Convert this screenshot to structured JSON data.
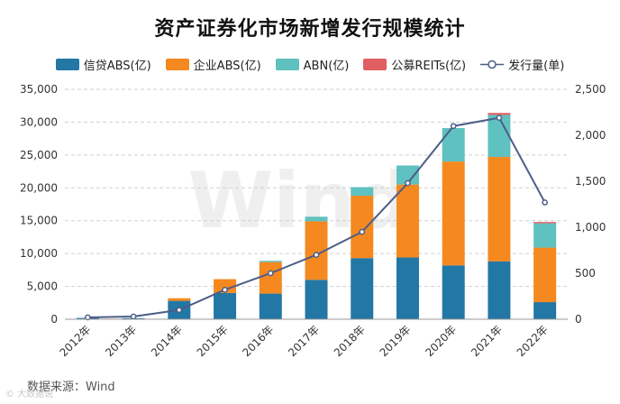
{
  "chart_data": {
    "type": "bar+line",
    "title": "资产证券化市场新增发行规模统计",
    "categories": [
      "2012年",
      "2013年",
      "2014年",
      "2015年",
      "2016年",
      "2017年",
      "2018年",
      "2019年",
      "2020年",
      "2021年",
      "2022年"
    ],
    "series": [
      {
        "name": "信贷ABS(亿)",
        "color": "#2377a4",
        "values": [
          200,
          150,
          2800,
          4000,
          3900,
          6000,
          9300,
          9400,
          8200,
          8800,
          2600
        ]
      },
      {
        "name": "企业ABS(亿)",
        "color": "#f5891f",
        "values": [
          0,
          0,
          400,
          2100,
          4800,
          8900,
          9500,
          11100,
          15800,
          15900,
          8300
        ]
      },
      {
        "name": "ABN(亿)",
        "color": "#5fc1c0",
        "values": [
          0,
          0,
          0,
          0,
          200,
          700,
          1300,
          2900,
          5100,
          6400,
          3700
        ]
      },
      {
        "name": "公募REITs(亿)",
        "color": "#e15f63",
        "values": [
          0,
          0,
          0,
          0,
          0,
          0,
          0,
          0,
          0,
          300,
          200
        ]
      }
    ],
    "line": {
      "name": "发行量(单)",
      "color": "#4c5d87",
      "values": [
        20,
        30,
        100,
        320,
        500,
        700,
        950,
        1480,
        2100,
        2190,
        1270
      ]
    },
    "y_left": {
      "min": 0,
      "max": 35000,
      "step": 5000,
      "ticks": [
        "0",
        "5,000",
        "10,000",
        "15,000",
        "20,000",
        "25,000",
        "30,000",
        "35,000"
      ]
    },
    "y_right": {
      "min": 0,
      "max": 2500,
      "step": 500,
      "ticks": [
        "0",
        "500",
        "1,000",
        "1,500",
        "2,000",
        "2,500"
      ]
    },
    "legend_position": "top",
    "grid": "horizontal-dashed"
  },
  "source": "数据来源：Wind",
  "watermark": "Wind",
  "corner_watermark": "© 大数据说"
}
